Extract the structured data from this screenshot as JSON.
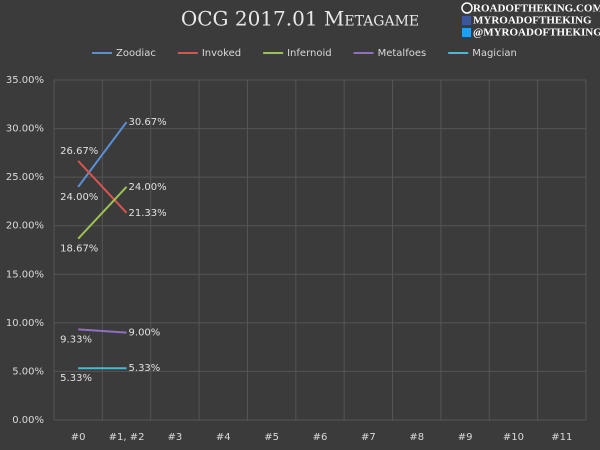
{
  "chart_data": {
    "type": "line",
    "title": "OCG 2017.01 Metagame",
    "annotations": [
      "ROADOFTHEKING.COM",
      "MYROADOFTHEKING",
      "@MYROADOFTHEKING"
    ],
    "categories": [
      "#0",
      "#1, #2",
      "#3",
      "#4",
      "#5",
      "#6",
      "#7",
      "#8",
      "#9",
      "#10",
      "#11"
    ],
    "series": [
      {
        "name": "Zoodiac",
        "color": "#5b8fd4",
        "values": [
          24.0,
          30.67,
          null,
          null,
          null,
          null,
          null,
          null,
          null,
          null,
          null
        ],
        "value_labels": [
          "24.00%",
          "30.67%",
          null,
          null,
          null,
          null,
          null,
          null,
          null,
          null,
          null
        ]
      },
      {
        "name": "Invoked",
        "color": "#d9534f",
        "values": [
          26.67,
          21.33,
          null,
          null,
          null,
          null,
          null,
          null,
          null,
          null,
          null
        ],
        "value_labels": [
          "26.67%",
          "21.33%",
          null,
          null,
          null,
          null,
          null,
          null,
          null,
          null,
          null
        ]
      },
      {
        "name": "Infernoid",
        "color": "#9bc254",
        "values": [
          18.67,
          24.0,
          null,
          null,
          null,
          null,
          null,
          null,
          null,
          null,
          null
        ],
        "value_labels": [
          "18.67%",
          "24.00%",
          null,
          null,
          null,
          null,
          null,
          null,
          null,
          null,
          null
        ]
      },
      {
        "name": "Metalfoes",
        "color": "#8f6fbf",
        "values": [
          9.33,
          9.0,
          null,
          null,
          null,
          null,
          null,
          null,
          null,
          null,
          null
        ],
        "value_labels": [
          "9.33%",
          "9.00%",
          null,
          null,
          null,
          null,
          null,
          null,
          null,
          null,
          null
        ]
      },
      {
        "name": "Magician",
        "color": "#4bb8d4",
        "values": [
          5.33,
          5.33,
          null,
          null,
          null,
          null,
          null,
          null,
          null,
          null,
          null
        ],
        "value_labels": [
          "5.33%",
          "5.33%",
          null,
          null,
          null,
          null,
          null,
          null,
          null,
          null,
          null
        ]
      }
    ],
    "ylim": [
      0,
      35
    ],
    "yticks": [
      {
        "value": 0,
        "label": "0.00%"
      },
      {
        "value": 5,
        "label": "5.00%"
      },
      {
        "value": 10,
        "label": "10.00%"
      },
      {
        "value": 15,
        "label": "15.00%"
      },
      {
        "value": 20,
        "label": "20.00%"
      },
      {
        "value": 25,
        "label": "25.00%"
      },
      {
        "value": 30,
        "label": "30.00%"
      },
      {
        "value": 35,
        "label": "35.00%"
      }
    ],
    "grid": true,
    "legend": "top"
  }
}
